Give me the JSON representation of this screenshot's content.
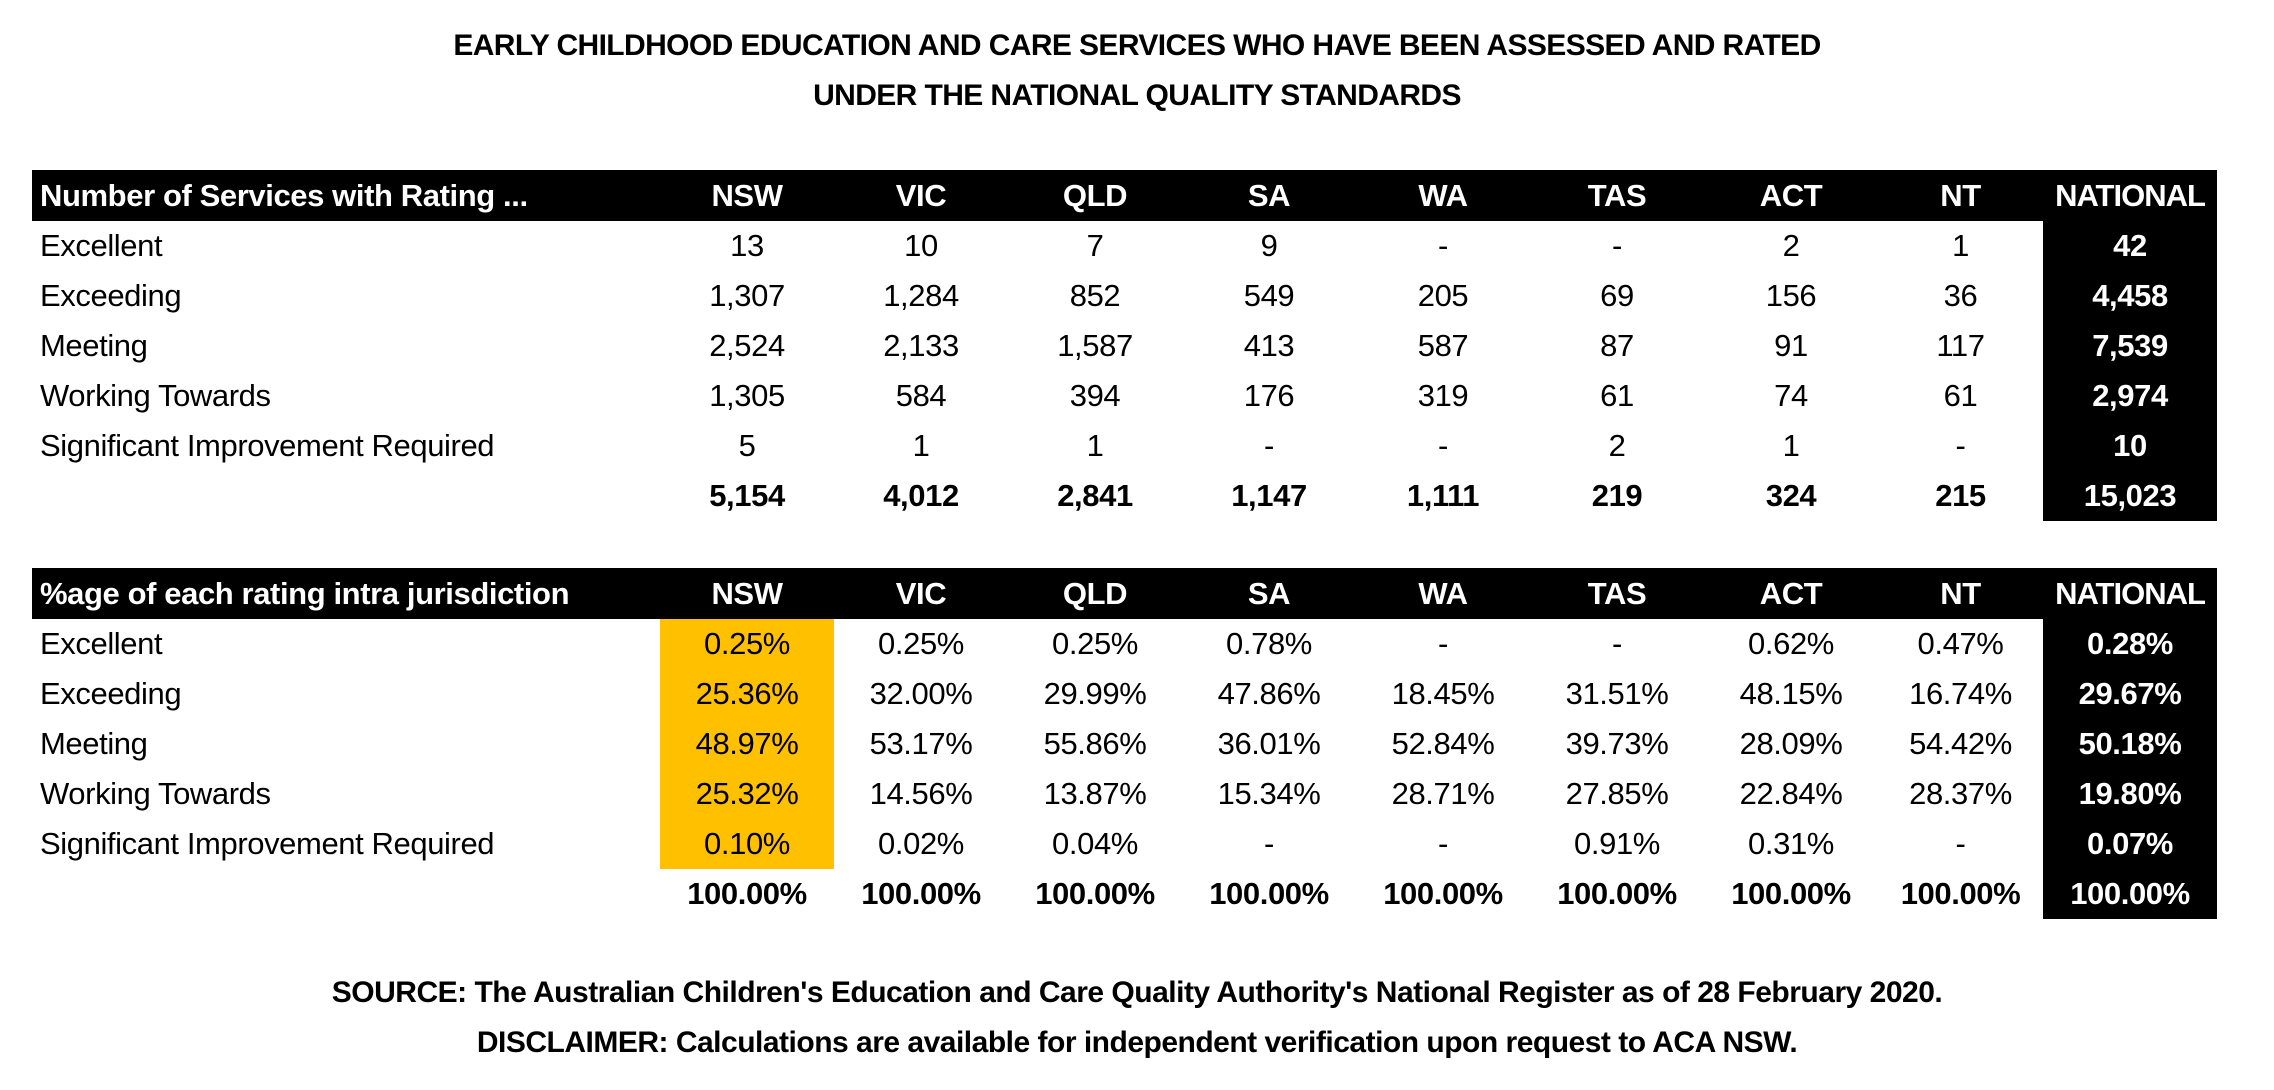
{
  "title": {
    "line1": "EARLY CHILDHOOD EDUCATION AND CARE SERVICES WHO HAVE BEEN ASSESSED AND RATED",
    "line2": "UNDER THE NATIONAL QUALITY STANDARDS"
  },
  "jurisdictions": [
    "NSW",
    "VIC",
    "QLD",
    "SA",
    "WA",
    "TAS",
    "ACT",
    "NT",
    "NATIONAL"
  ],
  "colors": {
    "header_bg": "#000000",
    "header_text": "#FFFFFF",
    "highlight": "#FFC000"
  },
  "counts_table": {
    "header_label": "Number of Services with Rating ...",
    "headers": [
      "NSW",
      "VIC",
      "QLD",
      "SA",
      "WA",
      "TAS",
      "ACT",
      "NT",
      "NATIONAL"
    ],
    "rows": [
      {
        "label": "Excellent",
        "values": [
          "13",
          "10",
          "7",
          "9",
          "-",
          "-",
          "2",
          "1",
          "42"
        ]
      },
      {
        "label": "Exceeding",
        "values": [
          "1,307",
          "1,284",
          "852",
          "549",
          "205",
          "69",
          "156",
          "36",
          "4,458"
        ]
      },
      {
        "label": "Meeting",
        "values": [
          "2,524",
          "2,133",
          "1,587",
          "413",
          "587",
          "87",
          "91",
          "117",
          "7,539"
        ]
      },
      {
        "label": "Working Towards",
        "values": [
          "1,305",
          "584",
          "394",
          "176",
          "319",
          "61",
          "74",
          "61",
          "2,974"
        ]
      },
      {
        "label": "Significant Improvement Required",
        "values": [
          "5",
          "1",
          "1",
          "-",
          "-",
          "2",
          "1",
          "-",
          "10"
        ]
      }
    ],
    "total": {
      "label": "",
      "values": [
        "5,154",
        "4,012",
        "2,841",
        "1,147",
        "1,111",
        "219",
        "324",
        "215",
        "15,023"
      ]
    }
  },
  "percent_table": {
    "header_label": "%age of each rating intra jurisdiction",
    "headers": [
      "NSW",
      "VIC",
      "QLD",
      "SA",
      "WA",
      "TAS",
      "ACT",
      "NT",
      "NATIONAL"
    ],
    "highlighted_column": "NSW",
    "rows": [
      {
        "label": "Excellent",
        "values": [
          "0.25%",
          "0.25%",
          "0.25%",
          "0.78%",
          "-",
          "-",
          "0.62%",
          "0.47%",
          "0.28%"
        ]
      },
      {
        "label": "Exceeding",
        "values": [
          "25.36%",
          "32.00%",
          "29.99%",
          "47.86%",
          "18.45%",
          "31.51%",
          "48.15%",
          "16.74%",
          "29.67%"
        ]
      },
      {
        "label": "Meeting",
        "values": [
          "48.97%",
          "53.17%",
          "55.86%",
          "36.01%",
          "52.84%",
          "39.73%",
          "28.09%",
          "54.42%",
          "50.18%"
        ]
      },
      {
        "label": "Working Towards",
        "values": [
          "25.32%",
          "14.56%",
          "13.87%",
          "15.34%",
          "28.71%",
          "27.85%",
          "22.84%",
          "28.37%",
          "19.80%"
        ]
      },
      {
        "label": "Significant Improvement Required",
        "values": [
          "0.10%",
          "0.02%",
          "0.04%",
          "-",
          "-",
          "0.91%",
          "0.31%",
          "-",
          "0.07%"
        ]
      }
    ],
    "total": {
      "label": "",
      "values": [
        "100.00%",
        "100.00%",
        "100.00%",
        "100.00%",
        "100.00%",
        "100.00%",
        "100.00%",
        "100.00%",
        "100.00%"
      ]
    }
  },
  "footer": {
    "source": "SOURCE: The Australian Children's Education and Care Quality Authority's National Register as of 28 February 2020.",
    "disclaimer": "DISCLAIMER: Calculations are available for independent verification upon request to ACA NSW."
  }
}
